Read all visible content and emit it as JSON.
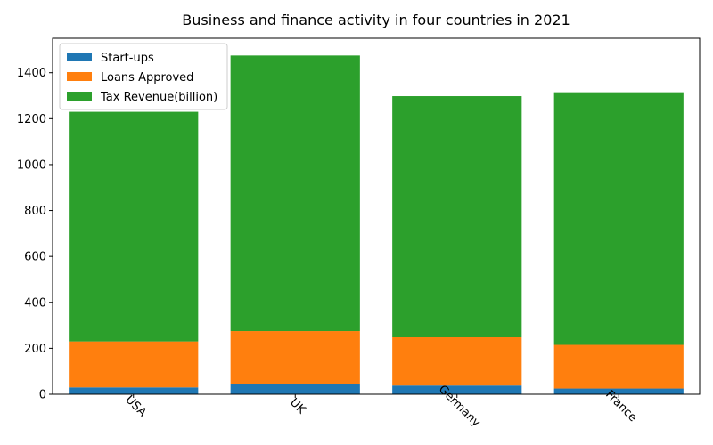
{
  "chart_data": {
    "type": "bar",
    "stacked": true,
    "title": "Business and finance activity in four countries in 2021",
    "xlabel": "",
    "ylabel": "",
    "categories": [
      "USA",
      "UK",
      "Germany",
      "France"
    ],
    "series": [
      {
        "name": "Start-ups",
        "color": "#1f77b4",
        "values": [
          30,
          45,
          38,
          25
        ]
      },
      {
        "name": "Loans Approved",
        "color": "#ff7f0e",
        "values": [
          200,
          230,
          210,
          190
        ]
      },
      {
        "name": "Tax Revenue(billion)",
        "color": "#2ca02c",
        "values": [
          1000,
          1200,
          1050,
          1100
        ]
      }
    ],
    "ylim": [
      0,
      1550
    ],
    "yticks": [
      0,
      200,
      400,
      600,
      800,
      1000,
      1200,
      1400
    ],
    "grid": false,
    "legend": "top-left"
  }
}
